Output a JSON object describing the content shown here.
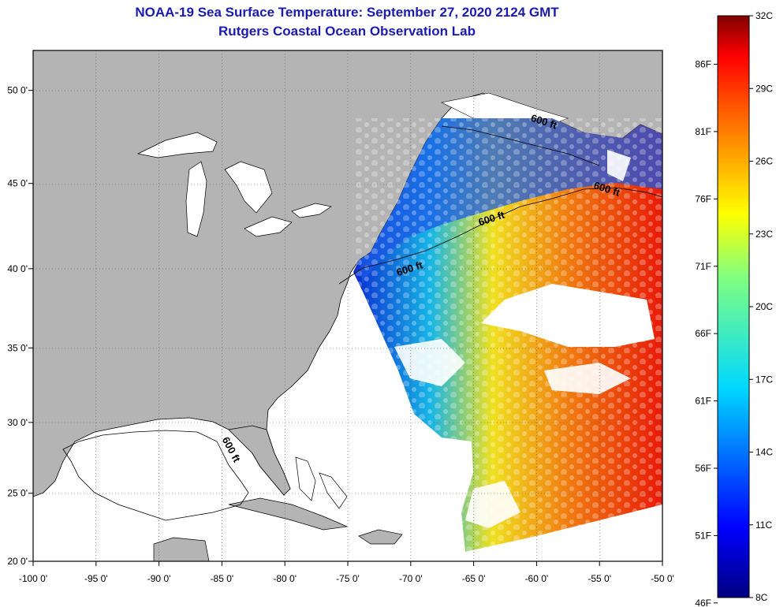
{
  "title": "NOAA-19 Sea Surface Temperature:  September 27, 2020 2124 GMT",
  "subtitle": "Rutgers Coastal Ocean Observation Lab",
  "colors": {
    "land": "#b4b4b4",
    "water": "#ffffff",
    "title": "#1b1bb4"
  },
  "map": {
    "lon_range": [
      -100,
      -50
    ],
    "lat_range": [
      20,
      52
    ],
    "lon_ticks": [
      "-100 0'",
      "-95 0'",
      "-90 0'",
      "-85 0'",
      "-80 0'",
      "-75 0'",
      "-70 0'",
      "-65 0'",
      "-60 0'",
      "-55 0'",
      "-50 0'"
    ],
    "lat_ticks": [
      {
        "lat": 50,
        "label": "50 0'"
      },
      {
        "lat": 45,
        "label": "45 0'"
      },
      {
        "lat": 40,
        "label": "40 0'"
      },
      {
        "lat": 35,
        "label": "35 0'"
      },
      {
        "lat": 30,
        "label": "30 0'"
      },
      {
        "lat": 25,
        "label": "25 0'"
      },
      {
        "lat": 20,
        "label": "20 0'"
      }
    ],
    "contour_labels": [
      {
        "text": "600 ft",
        "lon": -59.5,
        "lat": 48.2,
        "rot": 18
      },
      {
        "text": "600 ft",
        "lon": -54.5,
        "lat": 44.5,
        "rot": 18
      },
      {
        "text": "600 ft",
        "lon": -63.5,
        "lat": 42.8,
        "rot": -18
      },
      {
        "text": "600 ft",
        "lon": -70.0,
        "lat": 39.8,
        "rot": -18
      },
      {
        "text": "600 ft",
        "lon": -84.5,
        "lat": 28.0,
        "rot": 62
      }
    ]
  },
  "colorbar": {
    "celsius": [
      "32C",
      "29C",
      "26C",
      "23C",
      "20C",
      "17C",
      "14C",
      "11C",
      "8C"
    ],
    "fahrenheit": [
      "86F",
      "81F",
      "76F",
      "71F",
      "66F",
      "61F",
      "56F",
      "51F",
      "46F"
    ],
    "f_values": [
      86,
      81,
      76,
      71,
      66,
      61,
      56,
      51,
      46
    ]
  }
}
